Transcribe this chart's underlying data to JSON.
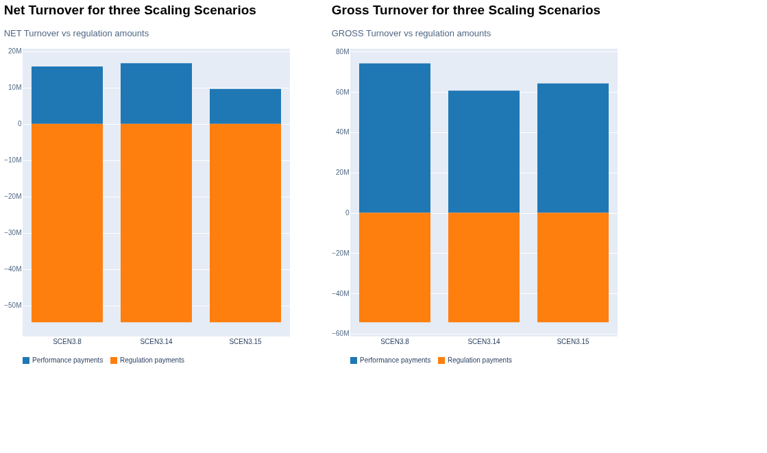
{
  "chart_data": [
    {
      "type": "bar",
      "stacked": true,
      "title": "Net Turnover for three Scaling Scenarios",
      "subtitle": "NET Turnover vs regulation amounts",
      "categories": [
        "SCEN3.8",
        "SCEN3.14",
        "SCEN3.15"
      ],
      "series": [
        {
          "name": "Performance payments",
          "color": "#1f77b4",
          "values": [
            15800000,
            16700000,
            9600000
          ]
        },
        {
          "name": "Regulation payments",
          "color": "#ff7f0e",
          "values": [
            -54600000,
            -54600000,
            -54600000
          ]
        }
      ],
      "ylim": [
        -58500000,
        20700000
      ],
      "yticks": [
        {
          "value": -50000000,
          "label": "−50M"
        },
        {
          "value": -40000000,
          "label": "−40M"
        },
        {
          "value": -30000000,
          "label": "−30M"
        },
        {
          "value": -20000000,
          "label": "−20M"
        },
        {
          "value": -10000000,
          "label": "−10M"
        },
        0,
        {
          "value": 10000000,
          "label": "10M"
        },
        {
          "value": 20000000,
          "label": "20M"
        }
      ],
      "grid": "y",
      "legend": "bottom"
    },
    {
      "type": "bar",
      "stacked": true,
      "title": "Gross Turnover for three Scaling Scenarios",
      "subtitle": "GROSS Turnover vs regulation amounts",
      "categories": [
        "SCEN3.8",
        "SCEN3.14",
        "SCEN3.15"
      ],
      "series": [
        {
          "name": "Performance payments",
          "color": "#1f77b4",
          "values": [
            74200000,
            60700000,
            64200000
          ]
        },
        {
          "name": "Regulation payments",
          "color": "#ff7f0e",
          "values": [
            -54300000,
            -54300000,
            -54300000
          ]
        }
      ],
      "ylim": [
        -61400000,
        81500000
      ],
      "yticks": [
        {
          "value": -60000000,
          "label": "−60M"
        },
        {
          "value": -40000000,
          "label": "−40M"
        },
        {
          "value": -20000000,
          "label": "−20M"
        },
        0,
        {
          "value": 20000000,
          "label": "20M"
        },
        {
          "value": 40000000,
          "label": "40M"
        },
        {
          "value": 60000000,
          "label": "60M"
        },
        {
          "value": 80000000,
          "label": "80M"
        }
      ],
      "grid": "y",
      "legend": "bottom"
    }
  ]
}
